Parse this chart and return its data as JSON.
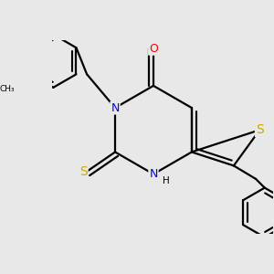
{
  "bg_color": "#e8e8e8",
  "bond_color": "#000000",
  "bond_width": 1.6,
  "atom_colors": {
    "N": "#0000ff",
    "O": "#ff0000",
    "S": "#ccaa00",
    "C": "#000000",
    "H": "#000000"
  },
  "font_size_atom": 9,
  "font_size_h": 7.5
}
